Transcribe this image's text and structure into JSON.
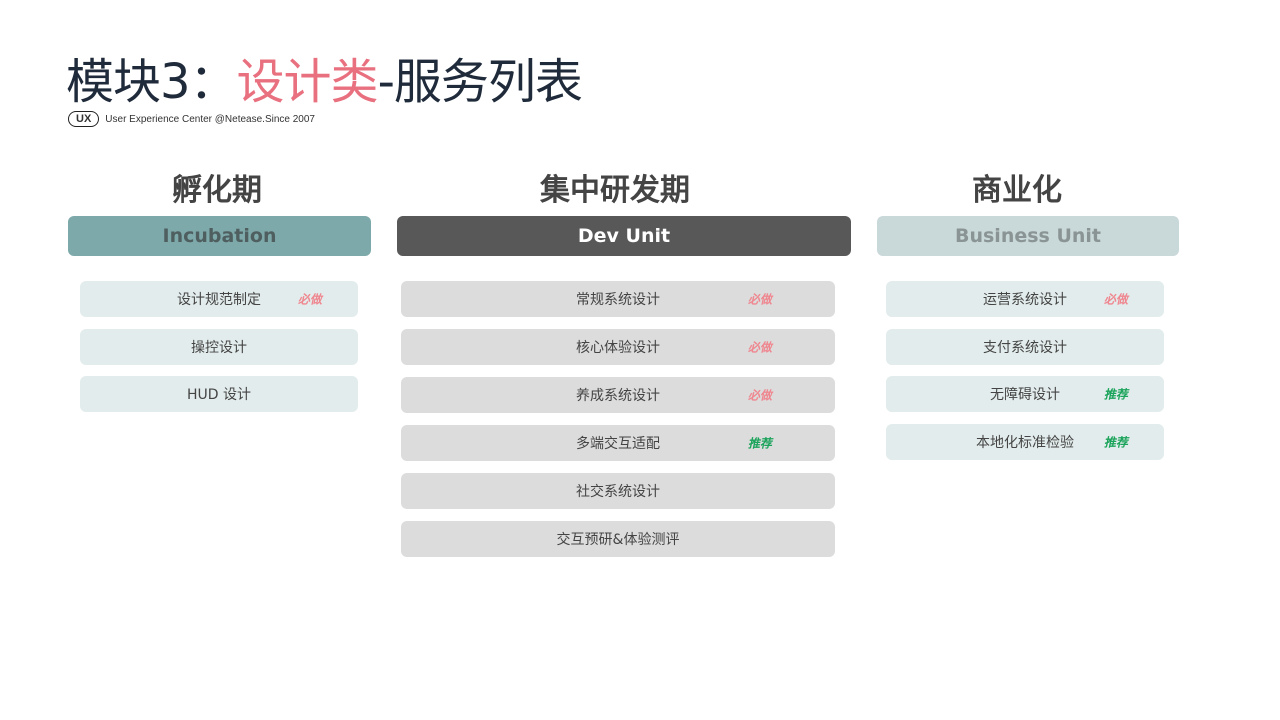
{
  "title": {
    "prefix": "模块3：",
    "highlight": "设计类",
    "suffix": "-服务列表"
  },
  "subtitle": {
    "badge": "UX",
    "text": "User Experience Center @Netease.Since 2007"
  },
  "colors": {
    "title": "#1f2a3a",
    "highlight": "#e8707f",
    "must": "#ef8790",
    "recommended": "#1aa35a"
  },
  "columns": [
    {
      "title": "孵化期",
      "header": "Incubation",
      "items": [
        {
          "label": "设计规范制定",
          "tag": "必做",
          "tag_type": "must"
        },
        {
          "label": "操控设计",
          "tag": "",
          "tag_type": ""
        },
        {
          "label": "HUD 设计",
          "tag": "",
          "tag_type": ""
        }
      ]
    },
    {
      "title": "集中研发期",
      "header": "Dev Unit",
      "items": [
        {
          "label": "常规系统设计",
          "tag": "必做",
          "tag_type": "must"
        },
        {
          "label": "核心体验设计",
          "tag": "必做",
          "tag_type": "must"
        },
        {
          "label": "养成系统设计",
          "tag": "必做",
          "tag_type": "must"
        },
        {
          "label": "多端交互适配",
          "tag": "推荐",
          "tag_type": "rec"
        },
        {
          "label": "社交系统设计",
          "tag": "",
          "tag_type": ""
        },
        {
          "label": "交互预研&体验测评",
          "tag": "",
          "tag_type": ""
        }
      ]
    },
    {
      "title": "商业化",
      "header": "Business Unit",
      "items": [
        {
          "label": "运营系统设计",
          "tag": "必做",
          "tag_type": "must"
        },
        {
          "label": "支付系统设计",
          "tag": "",
          "tag_type": ""
        },
        {
          "label": "无障碍设计",
          "tag": "推荐",
          "tag_type": "rec"
        },
        {
          "label": "本地化标准检验",
          "tag": "推荐",
          "tag_type": "rec"
        }
      ]
    }
  ]
}
